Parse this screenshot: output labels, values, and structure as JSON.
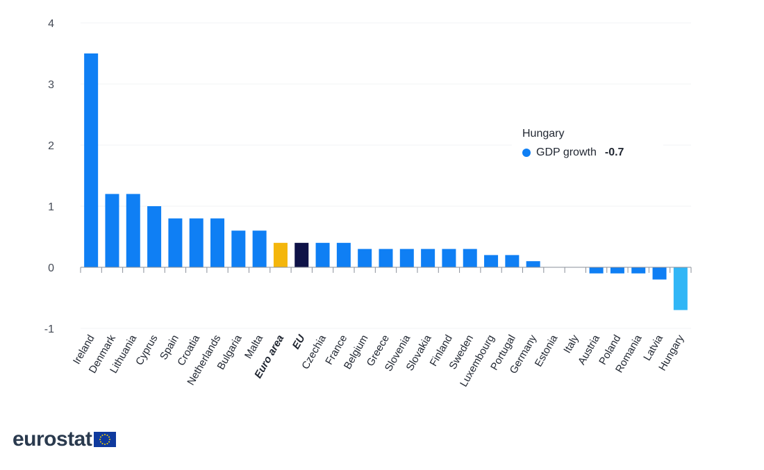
{
  "chart_data": {
    "type": "bar",
    "categories": [
      "Ireland",
      "Denmark",
      "Lithuania",
      "Cyprus",
      "Spain",
      "Croatia",
      "Netherlands",
      "Bulgaria",
      "Malta",
      "Euro area",
      "EU",
      "Czechia",
      "France",
      "Belgium",
      "Greece",
      "Slovenia",
      "Slovakia",
      "Finland",
      "Sweden",
      "Luxembourg",
      "Portugal",
      "Germany",
      "Estonia",
      "Italy",
      "Austria",
      "Poland",
      "Romania",
      "Latvia",
      "Hungary"
    ],
    "bold_categories": [
      "Euro area",
      "EU"
    ],
    "series": [
      {
        "name": "GDP growth",
        "values": [
          3.5,
          1.2,
          1.2,
          1.0,
          0.8,
          0.8,
          0.8,
          0.6,
          0.6,
          0.4,
          0.4,
          0.4,
          0.4,
          0.3,
          0.3,
          0.3,
          0.3,
          0.3,
          0.3,
          0.2,
          0.2,
          0.1,
          0.0,
          0.0,
          -0.1,
          -0.1,
          -0.1,
          -0.2,
          -0.7
        ]
      }
    ],
    "ylim": [
      -1,
      4
    ],
    "yticks": [
      -1,
      0,
      1,
      2,
      3,
      4
    ],
    "grid": true,
    "colors": {
      "default": "#0f7ff4",
      "euro_area": "#f4b60c",
      "eu": "#0e1247",
      "highlight": "#31b6f6"
    },
    "highlighted_category": "Hungary"
  },
  "tooltip": {
    "title": "Hungary",
    "series_label": "GDP growth",
    "value": "-0.7"
  },
  "logo": {
    "text": "eurostat"
  }
}
